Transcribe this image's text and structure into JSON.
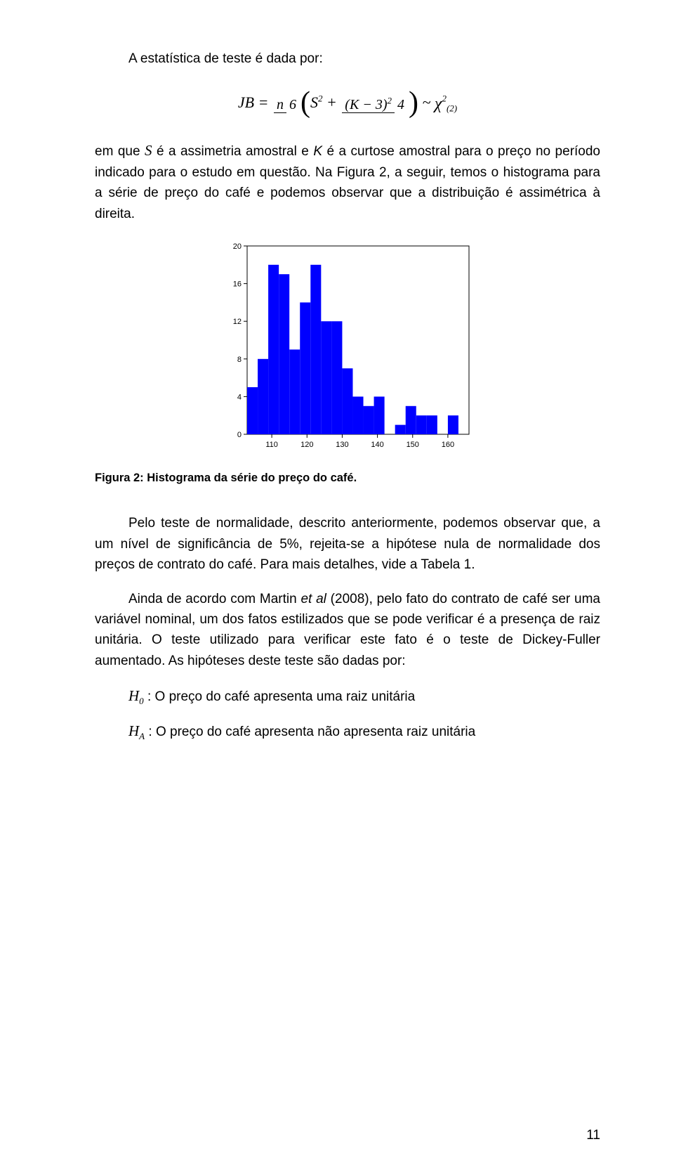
{
  "para1_lead": "A estatística de teste é dada por:",
  "para2_a": "em que ",
  "para2_b": " é a assimetria amostral e ",
  "para2_c": " é a curtose amostral para o preço no período indicado para o estudo em questão. Na Figura 2, a seguir, temos o histograma para a série de preço do café e podemos observar que a distribuição é assimétrica à direita.",
  "S": "S",
  "K": "K",
  "caption1": "Figura 2: Histograma da série do preço do café.",
  "para3": "Pelo teste de normalidade, descrito anteriormente, podemos observar que, a um nível de significância de 5%, rejeita-se a hipótese nula de normalidade dos preços de contrato do café. Para mais detalhes, vide a Tabela 1.",
  "para4_a": "Ainda de acordo com Martin ",
  "para4_et_al": "et al",
  "para4_b": " (2008), pelo fato do contrato de café ser uma variável nominal, um dos fatos estilizados que se pode verificar é a presença de raiz unitária. O teste utilizado para verificar este fato é o teste de Dickey-Fuller aumentado. As hipóteses deste teste são dadas por:",
  "H": "H",
  "sub0": "0",
  "subA": "A",
  "hyp0_text": " : O preço do café apresenta uma raiz unitária",
  "hypA_text": " : O preço do café apresenta não apresenta raiz unitária",
  "formula": {
    "JB": "JB",
    "eq": " = ",
    "n": "n",
    "six": "6",
    "S": "S",
    "two": "2",
    "plus": " + ",
    "K": "K",
    "minus": " − ",
    "three": "3",
    "four": "4",
    "tilde": " ~ ",
    "chi": "χ",
    "chisub": "(2)"
  },
  "chart": {
    "type": "histogram",
    "bar_color": "#0000ff",
    "background": "#ffffff",
    "axis_color": "#000000",
    "tick_fontsize": 11,
    "x_ticks": [
      110,
      120,
      130,
      140,
      150,
      160
    ],
    "y_ticks": [
      0,
      4,
      8,
      12,
      16,
      20
    ],
    "x_range": [
      103,
      166
    ],
    "y_range": [
      0,
      20
    ],
    "bins": [
      {
        "x": 104.5,
        "h": 5
      },
      {
        "x": 107.5,
        "h": 8
      },
      {
        "x": 110.5,
        "h": 18
      },
      {
        "x": 113.5,
        "h": 17
      },
      {
        "x": 116.5,
        "h": 9
      },
      {
        "x": 119.5,
        "h": 14
      },
      {
        "x": 122.5,
        "h": 18
      },
      {
        "x": 125.5,
        "h": 12
      },
      {
        "x": 128.5,
        "h": 12
      },
      {
        "x": 131.5,
        "h": 7
      },
      {
        "x": 134.5,
        "h": 4
      },
      {
        "x": 137.5,
        "h": 3
      },
      {
        "x": 140.5,
        "h": 4
      },
      {
        "x": 143.5,
        "h": 0
      },
      {
        "x": 146.5,
        "h": 1
      },
      {
        "x": 149.5,
        "h": 3
      },
      {
        "x": 152.5,
        "h": 2
      },
      {
        "x": 155.5,
        "h": 2
      },
      {
        "x": 158.5,
        "h": 0
      },
      {
        "x": 161.5,
        "h": 2
      }
    ],
    "bin_width": 3
  },
  "page_number": "11"
}
